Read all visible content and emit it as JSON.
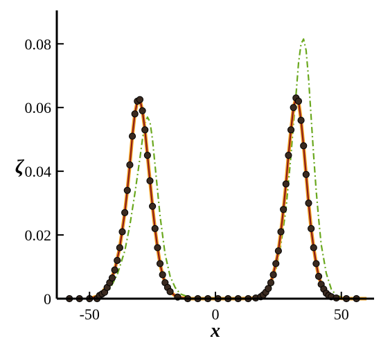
{
  "chart_data": {
    "type": "line",
    "xlabel": "x",
    "ylabel": "ζ",
    "xlim": [
      -63,
      63
    ],
    "ylim": [
      0,
      0.0905
    ],
    "x_ticks": [
      -50,
      0,
      50
    ],
    "x_tick_labels": [
      "-50",
      "0",
      "50"
    ],
    "y_ticks": [
      0,
      0.02,
      0.04,
      0.06,
      0.08
    ],
    "y_tick_labels": [
      "0",
      "0.02",
      "0.04",
      "0.06",
      "0.08"
    ],
    "grid": false,
    "legend": "none",
    "series": [
      {
        "style": "green dash-dot line",
        "color": "#6aa81e",
        "x": [
          -50,
          -46,
          -42,
          -39,
          -36,
          -34,
          -32,
          -30,
          -29,
          -28,
          -27,
          -26,
          -25,
          -24,
          -23,
          -22,
          -20,
          -18,
          -16,
          -14,
          -10,
          0,
          10,
          16,
          20,
          22,
          24,
          26,
          28,
          30,
          31,
          32,
          33,
          34,
          35,
          36,
          37,
          38,
          39,
          40,
          41,
          42,
          44,
          46,
          48,
          52,
          60
        ],
        "y": [
          0,
          0.0008,
          0.003,
          0.0075,
          0.015,
          0.023,
          0.033,
          0.044,
          0.05,
          0.055,
          0.057,
          0.0555,
          0.05,
          0.042,
          0.034,
          0.026,
          0.014,
          0.007,
          0.0035,
          0.0015,
          0.0003,
          0,
          0,
          0.0002,
          0.0015,
          0.004,
          0.009,
          0.017,
          0.028,
          0.045,
          0.055,
          0.064,
          0.074,
          0.08,
          0.0815,
          0.078,
          0.069,
          0.057,
          0.045,
          0.034,
          0.025,
          0.017,
          0.008,
          0.003,
          0.001,
          0.0001,
          0
        ]
      },
      {
        "style": "orange solid line",
        "color": "#f0a020",
        "x": [
          -50,
          -46,
          -42,
          -40,
          -38,
          -36,
          -35,
          -34,
          -33,
          -32,
          -31,
          -30,
          -29,
          -28,
          -27,
          -26,
          -25,
          -24,
          -23,
          -22,
          -21,
          -20,
          -18,
          -16,
          -14,
          -10,
          0,
          10,
          16,
          18,
          20,
          22,
          24,
          25,
          26,
          27,
          28,
          29,
          30,
          31,
          32,
          33,
          34,
          35,
          36,
          37,
          38,
          39,
          40,
          41,
          42,
          44,
          46,
          48,
          52,
          60
        ],
        "y": [
          0,
          0.001,
          0.005,
          0.009,
          0.016,
          0.027,
          0.034,
          0.042,
          0.051,
          0.058,
          0.062,
          0.0625,
          0.059,
          0.053,
          0.045,
          0.037,
          0.029,
          0.022,
          0.016,
          0.011,
          0.0075,
          0.005,
          0.0022,
          0.0009,
          0.0003,
          0,
          0,
          0,
          0.0002,
          0.0006,
          0.002,
          0.005,
          0.011,
          0.015,
          0.021,
          0.028,
          0.036,
          0.045,
          0.053,
          0.06,
          0.063,
          0.062,
          0.056,
          0.048,
          0.039,
          0.03,
          0.022,
          0.016,
          0.011,
          0.007,
          0.0045,
          0.0017,
          0.0006,
          0.0002,
          0,
          0
        ]
      },
      {
        "style": "dark red solid line",
        "color": "#8b1a1a",
        "x": [
          -50,
          -46,
          -42,
          -40,
          -38,
          -36,
          -35,
          -34,
          -33,
          -32,
          -31,
          -30,
          -29,
          -28,
          -27,
          -26,
          -25,
          -24,
          -23,
          -22,
          -21,
          -20,
          -18,
          -16,
          -14,
          -10,
          0,
          10,
          16,
          18,
          20,
          22,
          24,
          25,
          26,
          27,
          28,
          29,
          30,
          31,
          32,
          33,
          34,
          35,
          36,
          37,
          38,
          39,
          40,
          41,
          42,
          44,
          46,
          48,
          52,
          60
        ],
        "y": [
          0,
          0.001,
          0.005,
          0.009,
          0.016,
          0.027,
          0.034,
          0.042,
          0.051,
          0.058,
          0.062,
          0.0625,
          0.059,
          0.053,
          0.045,
          0.037,
          0.029,
          0.022,
          0.016,
          0.011,
          0.0075,
          0.005,
          0.0022,
          0.0009,
          0.0003,
          0,
          0,
          0,
          0.0002,
          0.0006,
          0.002,
          0.005,
          0.011,
          0.015,
          0.021,
          0.028,
          0.036,
          0.045,
          0.053,
          0.06,
          0.063,
          0.062,
          0.056,
          0.048,
          0.039,
          0.03,
          0.022,
          0.016,
          0.011,
          0.007,
          0.0045,
          0.0017,
          0.0006,
          0.0002,
          0,
          0
        ]
      },
      {
        "style": "black circle markers",
        "color": "#3a2a20",
        "x": [
          -58,
          -54,
          -50,
          -47,
          -46,
          -45,
          -44,
          -43,
          -42,
          -41,
          -40,
          -39,
          -38,
          -37,
          -36,
          -35,
          -34,
          -33,
          -32,
          -31,
          -30,
          -29,
          -28,
          -27,
          -26,
          -25,
          -24,
          -23,
          -22,
          -21,
          -20,
          -19,
          -18,
          -15,
          -11,
          -7,
          -3,
          1,
          5,
          9,
          13,
          16,
          18,
          19,
          20,
          21,
          22,
          23,
          24,
          25,
          26,
          27,
          28,
          29,
          30,
          31,
          32,
          33,
          34,
          35,
          36,
          37,
          38,
          39,
          40,
          41,
          42,
          43,
          44,
          45,
          46,
          48,
          52,
          56
        ],
        "y": [
          0,
          0,
          0,
          0,
          0.001,
          0.0015,
          0.002,
          0.0035,
          0.005,
          0.0065,
          0.009,
          0.012,
          0.016,
          0.021,
          0.027,
          0.034,
          0.042,
          0.051,
          0.058,
          0.062,
          0.0625,
          0.059,
          0.053,
          0.045,
          0.037,
          0.029,
          0.022,
          0.016,
          0.011,
          0.0075,
          0.005,
          0.0035,
          0.0022,
          0.0005,
          0,
          0,
          0,
          0,
          0,
          0,
          0,
          0.0002,
          0.0006,
          0.0012,
          0.002,
          0.0032,
          0.005,
          0.0075,
          0.011,
          0.015,
          0.021,
          0.028,
          0.036,
          0.045,
          0.053,
          0.06,
          0.063,
          0.062,
          0.056,
          0.048,
          0.039,
          0.03,
          0.022,
          0.016,
          0.011,
          0.007,
          0.0045,
          0.003,
          0.0017,
          0.001,
          0.0006,
          0.0002,
          0,
          0
        ]
      }
    ]
  }
}
